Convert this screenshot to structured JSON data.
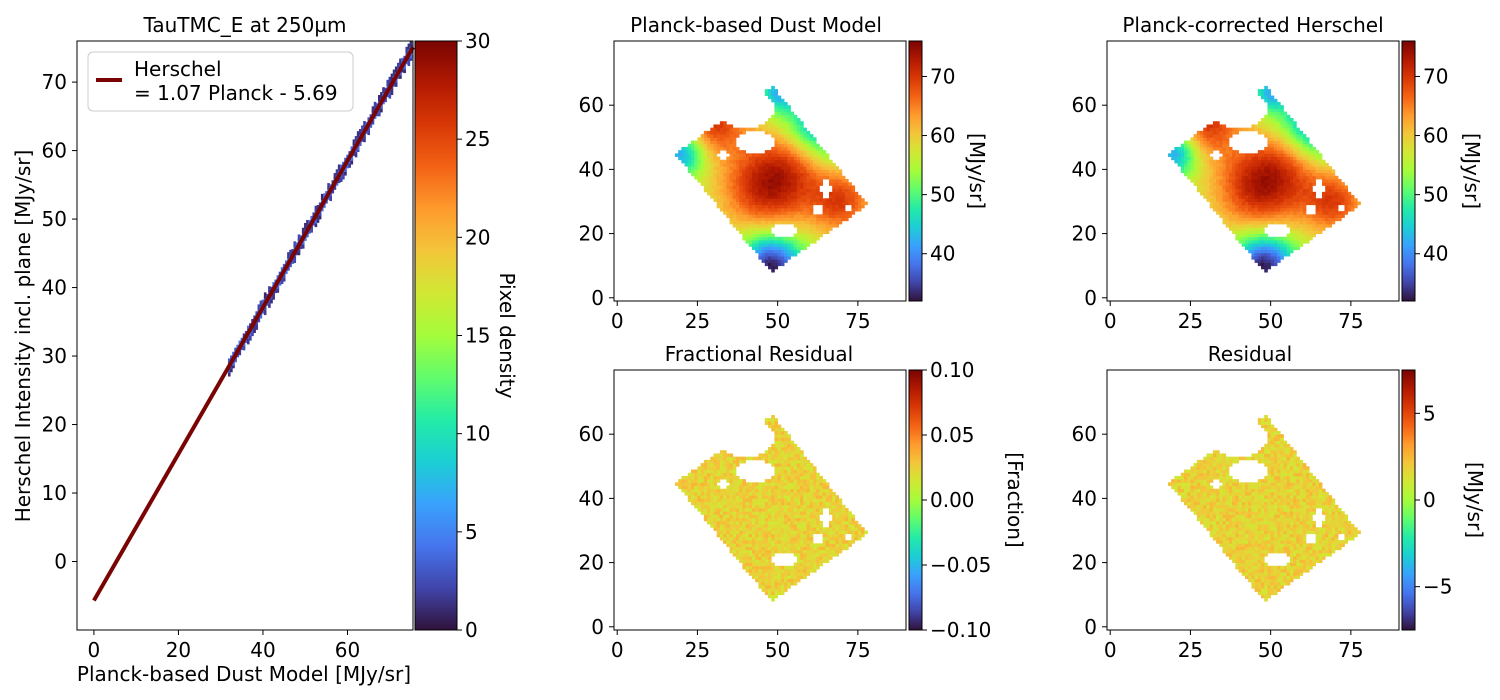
{
  "colors": {
    "fit_line": "#7a0403",
    "turbo_stops": [
      "#30123b",
      "#4145ab",
      "#4675ed",
      "#39a2fc",
      "#1bcfd4",
      "#24eca6",
      "#61fc6c",
      "#a4fc3b",
      "#d1e834",
      "#f3c63a",
      "#fe9b2d",
      "#f36315",
      "#d93806",
      "#b11901",
      "#7a0403"
    ],
    "white": "#ffffff"
  },
  "chart_data": [
    {
      "type": "heatmap",
      "panel": "scatter-density",
      "title": "TauTMC_E at 250µm",
      "xlabel": "Planck-based Dust Model [MJy/sr]",
      "ylabel": "Herschel Intensity incl. plane [MJy/sr]",
      "xlim": [
        -4,
        75.5
      ],
      "ylim": [
        -10,
        76
      ],
      "xticks": [
        "0",
        "20",
        "40",
        "60"
      ],
      "yticks": [
        "0",
        "10",
        "20",
        "30",
        "40",
        "50",
        "60",
        "70"
      ],
      "fit": {
        "slope": 1.07,
        "intercept": -5.69,
        "x_range": [
          0,
          75.5
        ]
      },
      "legend": {
        "position": "upper-left",
        "label_line1": "Herschel",
        "label_line2": "= 1.07 Planck - 5.69"
      },
      "density_points_x_range": [
        32,
        75
      ],
      "colorbar": {
        "label": "Pixel density",
        "range": [
          0,
          30
        ],
        "ticks": [
          "0",
          "5",
          "10",
          "15",
          "20",
          "25",
          "30"
        ]
      }
    },
    {
      "type": "heatmap",
      "panel": "map",
      "title": "Planck-based Dust Model",
      "xlim": [
        -1,
        90
      ],
      "ylim": [
        -1,
        80
      ],
      "xticks": [
        "0",
        "25",
        "50",
        "75"
      ],
      "yticks": [
        "0",
        "20",
        "40",
        "60"
      ],
      "colorbar": {
        "label": "[MJy/sr]",
        "range": [
          32,
          76
        ],
        "ticks": [
          "40",
          "50",
          "60",
          "70"
        ]
      }
    },
    {
      "type": "heatmap",
      "panel": "map",
      "title": "Planck-corrected Herschel",
      "xlim": [
        -1,
        90
      ],
      "ylim": [
        -1,
        80
      ],
      "xticks": [
        "0",
        "25",
        "50",
        "75"
      ],
      "yticks": [
        "0",
        "20",
        "40",
        "60"
      ],
      "colorbar": {
        "label": "[MJy/sr]",
        "range": [
          32,
          76
        ],
        "ticks": [
          "40",
          "50",
          "60",
          "70"
        ]
      }
    },
    {
      "type": "heatmap",
      "panel": "map",
      "title": "Fractional Residual",
      "xlim": [
        -1,
        90
      ],
      "ylim": [
        -1,
        80
      ],
      "xticks": [
        "0",
        "25",
        "50",
        "75"
      ],
      "yticks": [
        "0",
        "20",
        "40",
        "60"
      ],
      "colorbar": {
        "label": "[Fraction]",
        "range": [
          -0.1,
          0.1
        ],
        "ticks": [
          "−0.10",
          "−0.05",
          "0.00",
          "0.05",
          "0.10"
        ]
      }
    },
    {
      "type": "heatmap",
      "panel": "map",
      "title": "Residual",
      "xlim": [
        -1,
        90
      ],
      "ylim": [
        -1,
        80
      ],
      "xticks": [
        "0",
        "25",
        "50",
        "75"
      ],
      "yticks": [
        "0",
        "20",
        "40",
        "60"
      ],
      "colorbar": {
        "label": "[MJy/sr]",
        "range": [
          -7.5,
          7.5
        ],
        "ticks": [
          "−5",
          "0",
          "5"
        ]
      }
    }
  ]
}
